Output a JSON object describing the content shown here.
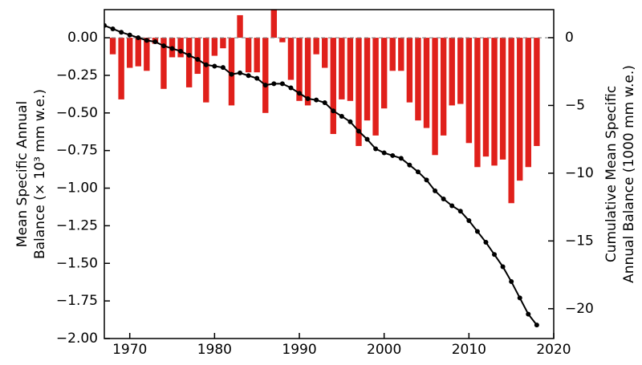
{
  "chart_data": {
    "type": "bar-line",
    "ylabel": [
      "Mean Specific Annual",
      "Balance (× 10³ mm w.e.)"
    ],
    "y2label": [
      "Cumulative Mean Specific",
      "Annual Balance (1000 mm w.e.)"
    ],
    "x": [
      1967,
      1968,
      1969,
      1970,
      1971,
      1972,
      1973,
      1974,
      1975,
      1976,
      1977,
      1978,
      1979,
      1980,
      1981,
      1982,
      1983,
      1984,
      1985,
      1986,
      1987,
      1988,
      1989,
      1990,
      1991,
      1992,
      1993,
      1994,
      1995,
      1996,
      1997,
      1998,
      1999,
      2000,
      2001,
      2002,
      2003,
      2004,
      2005,
      2006,
      2007,
      2008,
      2009,
      2010,
      2011,
      2012,
      2013,
      2014,
      2015,
      2016,
      2017,
      2018
    ],
    "series": [
      {
        "type": "bar",
        "color": "#e0201b",
        "values": [
          null,
          -0.11,
          -0.41,
          -0.2,
          -0.19,
          -0.22,
          -0.04,
          -0.34,
          -0.13,
          -0.13,
          -0.33,
          -0.24,
          -0.43,
          -0.12,
          -0.07,
          -0.45,
          0.15,
          -0.23,
          -0.23,
          -0.5,
          0.19,
          -0.03,
          -0.28,
          -0.42,
          -0.45,
          -0.11,
          -0.2,
          -0.64,
          -0.41,
          -0.42,
          -0.72,
          -0.55,
          -0.65,
          -0.47,
          -0.22,
          -0.22,
          -0.43,
          -0.55,
          -0.6,
          -0.78,
          -0.65,
          -0.45,
          -0.44,
          -0.7,
          -0.86,
          -0.79,
          -0.85,
          -0.81,
          -1.1,
          -0.95,
          -0.86,
          -0.72
        ]
      },
      {
        "type": "line",
        "axis": "y2",
        "color": "#000000",
        "values": [
          0.9,
          0.65,
          0.4,
          0.2,
          0.0,
          -0.2,
          -0.3,
          -0.6,
          -0.8,
          -1.0,
          -1.3,
          -1.6,
          -2.0,
          -2.1,
          -2.2,
          -2.7,
          -2.6,
          -2.8,
          -3.0,
          -3.5,
          -3.4,
          -3.4,
          -3.7,
          -4.1,
          -4.5,
          -4.6,
          -4.8,
          -5.4,
          -5.8,
          -6.2,
          -6.9,
          -7.5,
          -8.2,
          -8.5,
          -8.7,
          -8.9,
          -9.4,
          -9.9,
          -10.5,
          -11.3,
          -11.9,
          -12.4,
          -12.8,
          -13.5,
          -14.3,
          -15.1,
          -16.0,
          -16.9,
          -18.0,
          -19.2,
          -20.4,
          -21.2
        ]
      }
    ],
    "xlim": [
      1967,
      2020
    ],
    "xticks": [
      1970,
      1980,
      1990,
      2000,
      2010,
      2020
    ],
    "ylim": [
      -2.0,
      0.187
    ],
    "yticks": [
      {
        "value": 0,
        "label": "0.00"
      },
      {
        "value": -0.25,
        "label": "−0.25"
      },
      {
        "value": -0.5,
        "label": "−0.50"
      },
      {
        "value": -0.75,
        "label": "−0.75"
      },
      {
        "value": -1.0,
        "label": "−1.00"
      },
      {
        "value": -1.25,
        "label": "−1.25"
      },
      {
        "value": -1.5,
        "label": "−1.50"
      },
      {
        "value": -1.75,
        "label": "−1.75"
      },
      {
        "value": -2.0,
        "label": "−2.00"
      }
    ],
    "y2lim": [
      -22.2,
      2.07
    ],
    "y2ticks": [
      0,
      {
        "value": -5,
        "label": "−5"
      },
      {
        "value": -10,
        "label": "−10"
      },
      {
        "value": -15,
        "label": "−15"
      },
      {
        "value": -20,
        "label": "−20"
      }
    ],
    "zero_line": true
  }
}
